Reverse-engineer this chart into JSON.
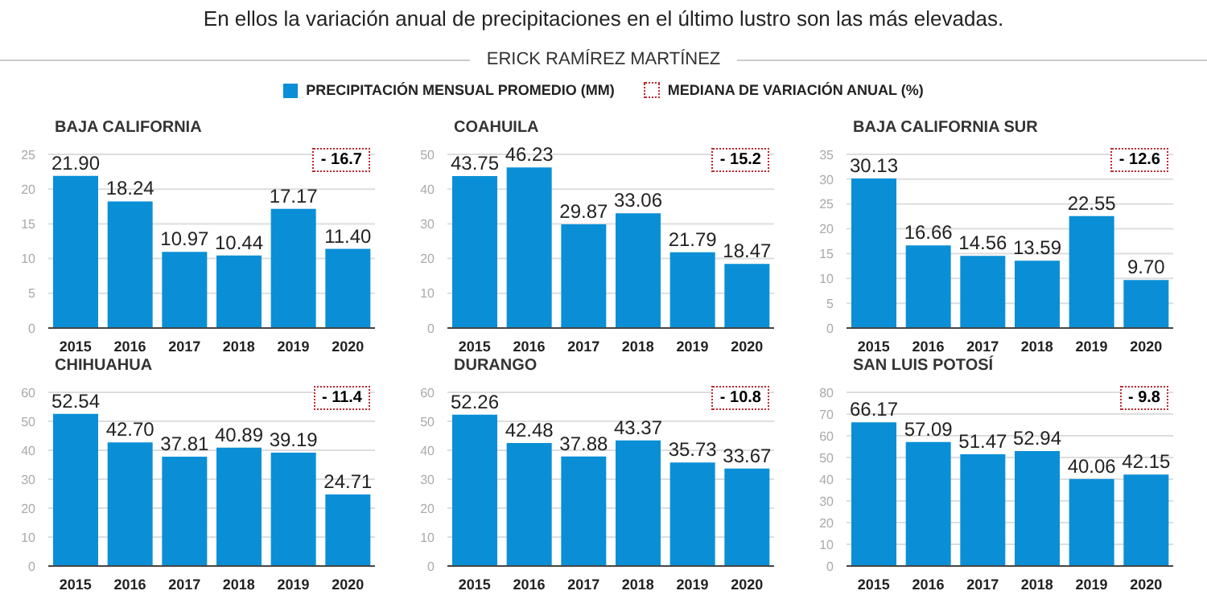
{
  "chart_data": [
    {
      "type": "bar",
      "subtitle": "En ellos la variación anual de precipitaciones en el último lustro son las más elevadas.",
      "title": "BAJA CALIFORNIA",
      "categories": [
        "2015",
        "2016",
        "2017",
        "2018",
        "2019",
        "2020"
      ],
      "series": [
        {
          "name": "PRECIPITACIÓN MENSUAL PROMEDIO (MM)",
          "color": "#0a8fd6",
          "values": [
            21.9,
            18.24,
            10.97,
            10.44,
            17.17,
            11.4
          ]
        }
      ],
      "value_labels": [
        "21.90",
        "18.24",
        "10.97",
        "10.44",
        "17.17",
        "11.40"
      ],
      "ylim": [
        0,
        25
      ],
      "yticks": [
        0,
        5,
        10,
        15,
        20,
        25
      ],
      "grid": "y",
      "legend": "top",
      "annotations": [
        "ERICK RAMÍREZ MARTÍNEZ",
        "MEDIANA DE VARIACIÓN ANUAL (%)",
        "- 16.7"
      ]
    },
    {
      "type": "bar",
      "title": "COAHUILA",
      "categories": [
        "2015",
        "2016",
        "2017",
        "2018",
        "2019",
        "2020"
      ],
      "series": [
        {
          "color": "#0a8fd6",
          "values": [
            43.75,
            46.23,
            29.87,
            33.06,
            21.79,
            18.47
          ]
        }
      ],
      "data_labels": true,
      "ylim": [
        0,
        50
      ],
      "yticks": [
        0,
        10,
        20,
        30,
        40,
        50
      ],
      "grid": "y",
      "annotations": [
        "- 15.2"
      ]
    },
    {
      "type": "bar",
      "title": "BAJA CALIFORNIA SUR",
      "categories": [
        "2015",
        "2016",
        "2017",
        "2018",
        "2019",
        "2020"
      ],
      "series": [
        {
          "color": "#0a8fd6",
          "values": [
            30.13,
            16.66,
            14.56,
            13.59,
            22.55,
            9.7
          ]
        }
      ],
      "value_labels": [
        "30.13",
        "16.66",
        "14.56",
        "13.59",
        "22.55",
        "9.70"
      ],
      "ylim": [
        0,
        35
      ],
      "yticks": [
        0,
        5,
        10,
        15,
        20,
        25,
        30,
        35
      ],
      "grid": "y",
      "annotations": [
        "- 12.6"
      ]
    },
    {
      "type": "bar",
      "title": "CHIHUAHUA",
      "categories": [
        "2015",
        "2016",
        "2017",
        "2018",
        "2019",
        "2020"
      ],
      "series": [
        {
          "color": "#0a8fd6",
          "values": [
            52.54,
            42.7,
            37.81,
            40.89,
            39.19,
            24.71
          ]
        }
      ],
      "value_labels": [
        "52.54",
        "42.70",
        "37.81",
        "40.89",
        "39.19",
        "24.71"
      ],
      "ylim": [
        0,
        60
      ],
      "yticks": [
        0,
        10,
        20,
        30,
        40,
        50,
        60
      ],
      "grid": "y",
      "annotations": [
        "- 11.4"
      ]
    },
    {
      "type": "bar",
      "title": "DURANGO",
      "categories": [
        "2015",
        "2016",
        "2017",
        "2018",
        "2019",
        "2020"
      ],
      "series": [
        {
          "color": "#0a8fd6",
          "values": [
            52.26,
            42.48,
            37.88,
            43.37,
            35.73,
            33.67
          ]
        }
      ],
      "data_labels": true,
      "ylim": [
        0,
        60
      ],
      "yticks": [
        0,
        10,
        20,
        30,
        40,
        50,
        60
      ],
      "grid": "y",
      "annotations": [
        "- 10.8"
      ]
    },
    {
      "type": "bar",
      "title": "SAN LUIS POTOSÍ",
      "categories": [
        "2015",
        "2016",
        "2017",
        "2018",
        "2019",
        "2020"
      ],
      "series": [
        {
          "color": "#0a8fd6",
          "values": [
            66.17,
            57.09,
            51.47,
            52.94,
            40.06,
            42.15
          ]
        }
      ],
      "data_labels": true,
      "ylim": [
        0,
        80
      ],
      "yticks": [
        0,
        10,
        20,
        30,
        40,
        50,
        60,
        70,
        80
      ],
      "grid": "y",
      "annotations": [
        "- 9.8"
      ]
    }
  ]
}
